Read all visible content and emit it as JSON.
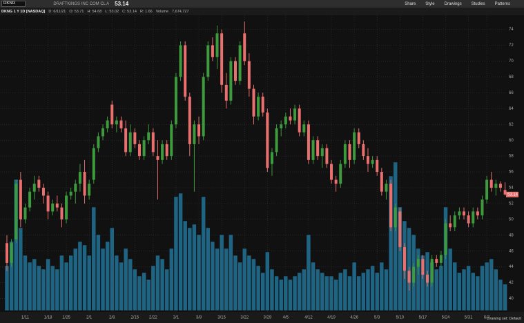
{
  "toolbar": {
    "symbol": "DKNG",
    "company": "DRAFTKINGS INC COM CL A",
    "last": "53.14",
    "buttons": [
      "Share",
      "Style",
      "Drawings",
      "Studies",
      "Patterns"
    ]
  },
  "info_bar": {
    "chart_label": "DKNG 1 Y 1D [NASDAQ]",
    "items": [
      "D: 6/11/21",
      "O: 53.71",
      "H: 54.68",
      "L: 53.02",
      "C: 53.14",
      "R: 1.66",
      "Volume",
      "7,674,727"
    ]
  },
  "footer": {
    "drawing_set": "Drawing set: Default"
  },
  "chart_data": {
    "type": "candlestick",
    "up_color": "#3d9a3d",
    "down_color": "#e8706e",
    "volume_color": "#1f6483",
    "grid": true,
    "ylim": [
      38.3,
      75.8
    ],
    "yticks": [
      40,
      42,
      44,
      46,
      48,
      50,
      52,
      54,
      56,
      58,
      60,
      62,
      64,
      66,
      68,
      70,
      72,
      74
    ],
    "categories": [
      null,
      null,
      null,
      null,
      "1/11",
      null,
      null,
      null,
      null,
      "1/18",
      null,
      null,
      null,
      "1/25",
      null,
      null,
      null,
      null,
      "2/1",
      null,
      null,
      null,
      null,
      "2/8",
      null,
      null,
      null,
      null,
      "2/15",
      null,
      null,
      null,
      "2/22",
      null,
      null,
      null,
      null,
      "3/1",
      null,
      null,
      null,
      null,
      "3/8",
      null,
      null,
      null,
      null,
      "3/15",
      null,
      null,
      null,
      null,
      "3/22",
      null,
      null,
      null,
      null,
      "3/29",
      null,
      null,
      null,
      "4/5",
      null,
      null,
      null,
      null,
      "4/12",
      null,
      null,
      null,
      null,
      "4/19",
      null,
      null,
      null,
      null,
      "4/26",
      null,
      null,
      null,
      null,
      "5/3",
      null,
      null,
      null,
      null,
      "5/10",
      null,
      null,
      null,
      null,
      "5/17",
      null,
      null,
      null,
      null,
      "5/24",
      null,
      null,
      null,
      null,
      "5/31",
      null,
      null,
      null,
      "6/7",
      null,
      null,
      null,
      null
    ],
    "open": [
      47,
      44.5,
      47.5,
      55,
      50,
      51.5,
      53.5,
      55,
      54,
      53,
      51,
      52,
      51.5,
      50,
      53,
      53.5,
      54.5,
      56,
      53,
      55,
      59,
      60.5,
      61.5,
      64.5,
      62,
      62.5,
      61.5,
      58.5,
      61,
      59.5,
      58,
      60,
      61,
      58,
      57.5,
      59.5,
      58,
      62,
      68,
      72,
      65.5,
      59.5,
      62,
      60.5,
      68,
      72,
      70.5,
      73.5,
      67,
      65,
      70,
      67.5,
      73.5,
      70,
      66.5,
      63,
      65.5,
      63.5,
      57,
      58.5,
      61.5,
      62,
      63,
      62.5,
      64,
      61,
      62,
      57.5,
      60,
      58,
      59,
      57,
      55,
      54.5,
      57,
      59.5,
      57.5,
      61,
      59.5,
      58,
      57,
      57.5,
      56,
      53.5,
      54.5,
      49,
      51,
      46.5,
      43.5,
      42,
      44,
      45,
      43,
      42,
      45,
      44.5,
      45.5,
      49.5,
      49,
      50.5,
      51,
      50.5,
      49.5,
      51,
      50.5,
      52.5,
      55,
      54,
      54.5,
      53.71
    ],
    "high": [
      48,
      47.5,
      55,
      56,
      52,
      54,
      55.5,
      55.5,
      54.5,
      53.5,
      52.5,
      53,
      52,
      53.5,
      54,
      55,
      57,
      57.5,
      55,
      59.5,
      61,
      62,
      63,
      65,
      63,
      63,
      62.5,
      62,
      61.5,
      60,
      60.5,
      62,
      61.5,
      60,
      60,
      60,
      62.5,
      68.5,
      72.5,
      72.5,
      66,
      62.5,
      63,
      68.5,
      72.5,
      73,
      74.5,
      74,
      68.5,
      70.5,
      70.5,
      72.5,
      75,
      71,
      67,
      66,
      66,
      64,
      59,
      62,
      62.5,
      63.5,
      64,
      64.5,
      64.5,
      62.5,
      62.5,
      60.5,
      60.5,
      59.5,
      59.5,
      57.5,
      55.5,
      57.5,
      60,
      60,
      61.5,
      61.5,
      60,
      59,
      58,
      58,
      56.5,
      55,
      55,
      52,
      51.5,
      47,
      44,
      44.5,
      45.5,
      45.5,
      43.5,
      45.5,
      45.5,
      46,
      50,
      50.5,
      51,
      51.5,
      51.5,
      51,
      51.5,
      51.5,
      53,
      55.5,
      56,
      55,
      54.8,
      54.68
    ],
    "low": [
      43.5,
      44,
      47,
      49,
      49.5,
      51,
      52.5,
      53.5,
      52,
      50,
      50.5,
      51,
      49,
      49.5,
      52.5,
      52,
      53.5,
      52,
      52.5,
      54.5,
      58.5,
      60,
      61,
      61.5,
      61,
      61,
      58,
      58,
      59,
      57.5,
      57.5,
      59.5,
      58,
      52.5,
      57,
      57.5,
      57.5,
      61.5,
      67.5,
      65,
      58,
      53.5,
      59.5,
      60,
      67.5,
      70,
      69,
      66,
      64,
      64.5,
      67,
      67,
      69.5,
      65.5,
      62,
      62.5,
      63,
      56,
      55.5,
      58,
      60.5,
      61.5,
      62,
      62,
      60.5,
      60.5,
      57,
      57,
      57.5,
      56.5,
      56.5,
      54.5,
      53.5,
      54,
      56.5,
      56.5,
      57,
      59,
      57.5,
      56,
      56.5,
      55.5,
      53,
      52.5,
      48.5,
      48.5,
      46,
      42.5,
      41,
      41.5,
      43,
      42.5,
      41.5,
      41.5,
      44,
      44,
      45,
      48.5,
      48.5,
      50,
      50,
      49,
      49,
      50,
      50,
      52,
      53.5,
      53,
      53.5,
      53.02
    ],
    "close": [
      44.5,
      47,
      54.5,
      50,
      51.5,
      53.5,
      54.5,
      54,
      53,
      51,
      52,
      51.5,
      50,
      53,
      53.5,
      54.5,
      56,
      53,
      54.5,
      59,
      60.5,
      61.5,
      62.5,
      62,
      62.5,
      61.5,
      58.5,
      61,
      59.5,
      58,
      60,
      61,
      58.5,
      57.5,
      59.5,
      58,
      62,
      68,
      72,
      65.5,
      59.5,
      62,
      60.5,
      68,
      72,
      70.5,
      73.5,
      67,
      65,
      70,
      67.5,
      72,
      70,
      66.5,
      63,
      65.5,
      63.5,
      56.5,
      58.5,
      61.5,
      62,
      63,
      62.5,
      64,
      61,
      62,
      57.5,
      60,
      58,
      59,
      57,
      55,
      54.5,
      57,
      59.5,
      57.5,
      61,
      59.5,
      58,
      57,
      57.5,
      56,
      53.5,
      54.5,
      49,
      51.5,
      46.5,
      43.5,
      42,
      44,
      45,
      43,
      42,
      45,
      44.5,
      45.5,
      49.5,
      49,
      50.5,
      51,
      50.5,
      49.5,
      51,
      50.5,
      52.5,
      55,
      54,
      54.5,
      54,
      53.14
    ],
    "volume": [
      13000000,
      20000000,
      38000000,
      24000000,
      16000000,
      14000000,
      15000000,
      13000000,
      12000000,
      15000000,
      13000000,
      12000000,
      16000000,
      14000000,
      16000000,
      18000000,
      20000000,
      19000000,
      16000000,
      30000000,
      22000000,
      18000000,
      20000000,
      24000000,
      16000000,
      14000000,
      18000000,
      15000000,
      12000000,
      10000000,
      11000000,
      9000000,
      13000000,
      16000000,
      15000000,
      12000000,
      18000000,
      33000000,
      34000000,
      26000000,
      24000000,
      25000000,
      22000000,
      33000000,
      24000000,
      20000000,
      18000000,
      22000000,
      18000000,
      22000000,
      16000000,
      14000000,
      18000000,
      16000000,
      15000000,
      13000000,
      11000000,
      17000000,
      12000000,
      10000000,
      9000000,
      10000000,
      9000000,
      10000000,
      11000000,
      12000000,
      22000000,
      14000000,
      12000000,
      11000000,
      10000000,
      10000000,
      9000000,
      11000000,
      12000000,
      10000000,
      14000000,
      10000000,
      11000000,
      12000000,
      13000000,
      11000000,
      14000000,
      12000000,
      39000000,
      43000000,
      30000000,
      26000000,
      24000000,
      22000000,
      18000000,
      16000000,
      17000000,
      14000000,
      12000000,
      13000000,
      30000000,
      18000000,
      14000000,
      11000000,
      12000000,
      13000000,
      11000000,
      10000000,
      13000000,
      14000000,
      15000000,
      12000000,
      9000000,
      7674727
    ]
  }
}
